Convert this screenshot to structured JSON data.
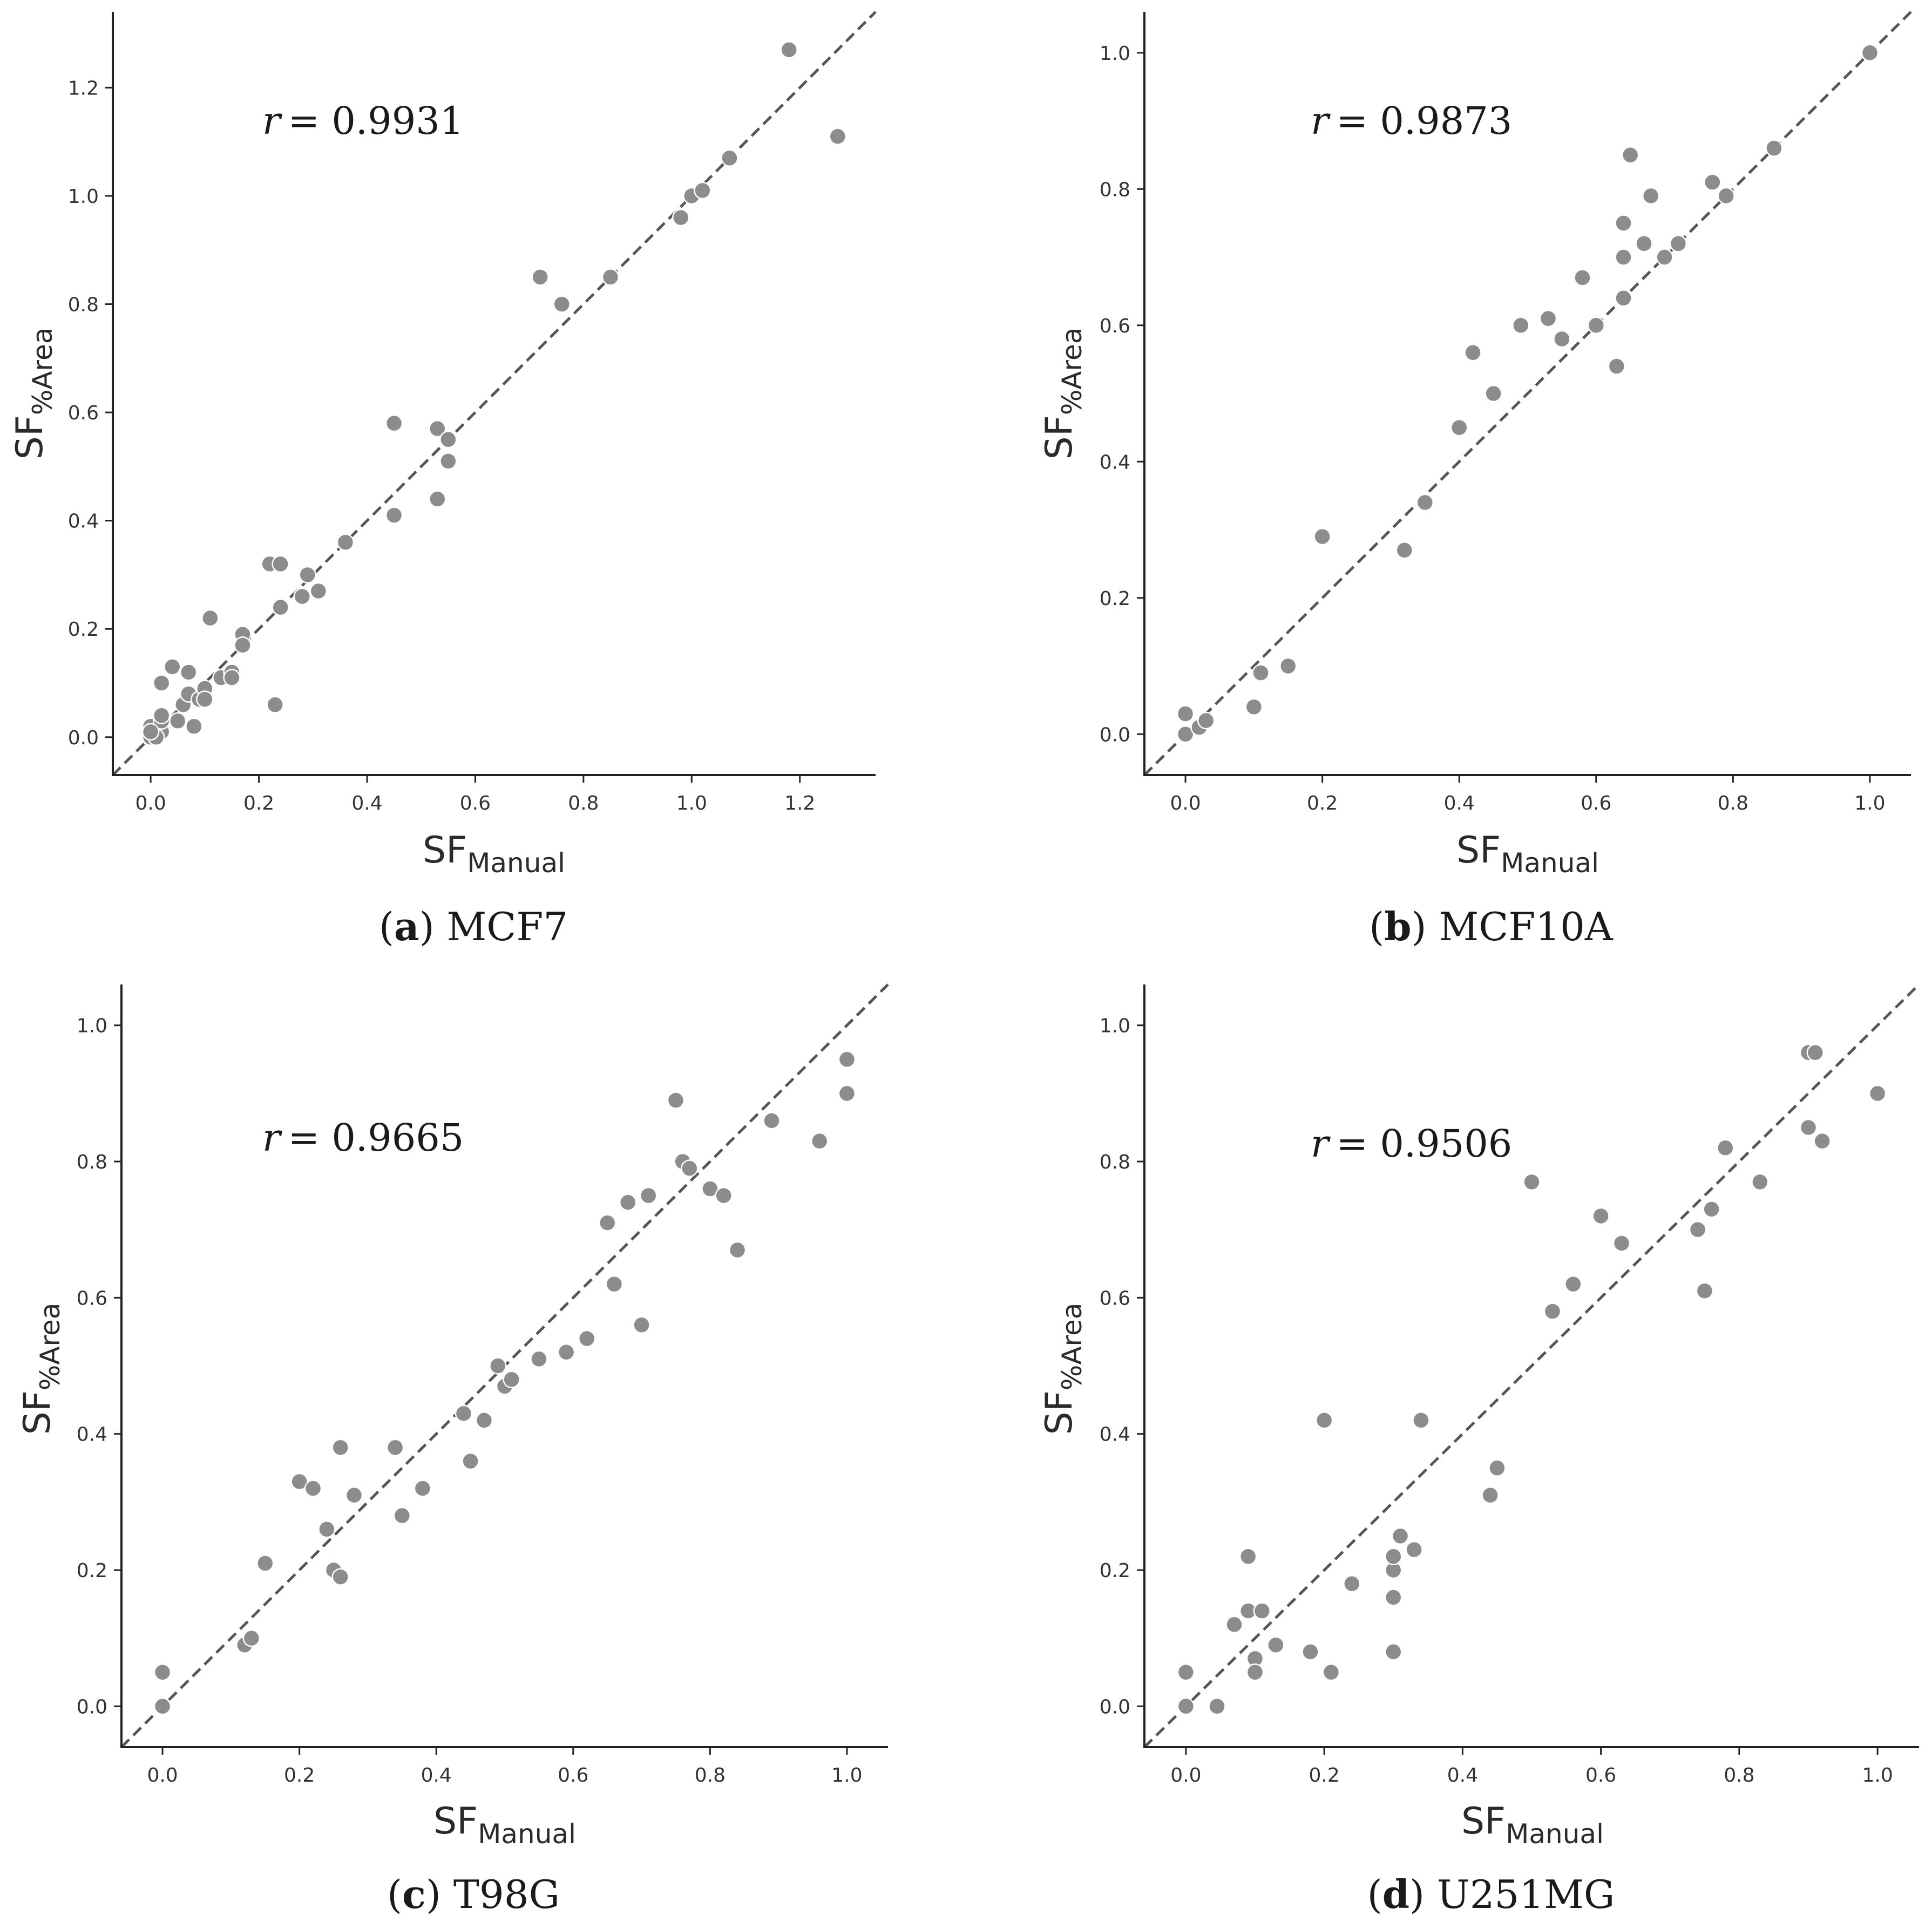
{
  "chart_data": [
    {
      "type": "scatter",
      "panel_letter": "a",
      "caption": "MCF7",
      "r_label": "r",
      "r_value": "= 0.9931",
      "xlabel": "SF",
      "xlabel_sub": "Manual",
      "ylabel": "SF",
      "ylabel_sub": "%Area",
      "xlim": [
        -0.07,
        1.34
      ],
      "ylim": [
        -0.07,
        1.34
      ],
      "xticks": [
        "0.0",
        "0.2",
        "0.4",
        "0.6",
        "0.8",
        "1.0",
        "1.2"
      ],
      "yticks": [
        "0.0",
        "0.2",
        "0.4",
        "0.6",
        "0.8",
        "1.0",
        "1.2"
      ],
      "reference_line": "y = x",
      "points": [
        [
          0.0,
          0.0
        ],
        [
          0.005,
          0.01
        ],
        [
          0.01,
          0.02
        ],
        [
          0.015,
          0.005
        ],
        [
          0.02,
          0.01
        ],
        [
          0.0,
          0.02
        ],
        [
          0.01,
          0.0
        ],
        [
          0.02,
          0.03
        ],
        [
          0.0,
          0.01
        ],
        [
          0.02,
          0.1
        ],
        [
          0.02,
          0.04
        ],
        [
          0.04,
          0.13
        ],
        [
          0.05,
          0.03
        ],
        [
          0.06,
          0.06
        ],
        [
          0.07,
          0.12
        ],
        [
          0.07,
          0.08
        ],
        [
          0.08,
          0.02
        ],
        [
          0.09,
          0.07
        ],
        [
          0.1,
          0.09
        ],
        [
          0.1,
          0.07
        ],
        [
          0.11,
          0.22
        ],
        [
          0.13,
          0.11
        ],
        [
          0.15,
          0.12
        ],
        [
          0.15,
          0.11
        ],
        [
          0.17,
          0.19
        ],
        [
          0.17,
          0.17
        ],
        [
          0.22,
          0.32
        ],
        [
          0.23,
          0.06
        ],
        [
          0.24,
          0.32
        ],
        [
          0.24,
          0.24
        ],
        [
          0.28,
          0.26
        ],
        [
          0.29,
          0.3
        ],
        [
          0.31,
          0.27
        ],
        [
          0.36,
          0.36
        ],
        [
          0.45,
          0.58
        ],
        [
          0.45,
          0.41
        ],
        [
          0.53,
          0.57
        ],
        [
          0.53,
          0.44
        ],
        [
          0.55,
          0.55
        ],
        [
          0.55,
          0.51
        ],
        [
          0.72,
          0.85
        ],
        [
          0.76,
          0.8
        ],
        [
          0.85,
          0.85
        ],
        [
          0.98,
          0.96
        ],
        [
          1.0,
          1.0
        ],
        [
          1.02,
          1.01
        ],
        [
          1.07,
          1.07
        ],
        [
          1.18,
          1.27
        ],
        [
          1.27,
          1.11
        ]
      ]
    },
    {
      "type": "scatter",
      "panel_letter": "b",
      "caption": "MCF10A",
      "r_label": "r",
      "r_value": "= 0.9873",
      "xlabel": "SF",
      "xlabel_sub": "Manual",
      "ylabel": "SF",
      "ylabel_sub": "%Area",
      "xlim": [
        -0.06,
        1.06
      ],
      "ylim": [
        -0.06,
        1.06
      ],
      "xticks": [
        "0.0",
        "0.2",
        "0.4",
        "0.6",
        "0.8",
        "1.0"
      ],
      "yticks": [
        "0.0",
        "0.2",
        "0.4",
        "0.6",
        "0.8",
        "1.0"
      ],
      "reference_line": "y = x",
      "points": [
        [
          0.0,
          0.0
        ],
        [
          0.0,
          0.03
        ],
        [
          0.02,
          0.01
        ],
        [
          0.03,
          0.02
        ],
        [
          0.1,
          0.04
        ],
        [
          0.11,
          0.09
        ],
        [
          0.15,
          0.1
        ],
        [
          0.2,
          0.29
        ],
        [
          0.32,
          0.27
        ],
        [
          0.35,
          0.34
        ],
        [
          0.4,
          0.45
        ],
        [
          0.42,
          0.56
        ],
        [
          0.45,
          0.5
        ],
        [
          0.49,
          0.6
        ],
        [
          0.53,
          0.61
        ],
        [
          0.55,
          0.58
        ],
        [
          0.58,
          0.67
        ],
        [
          0.6,
          0.6
        ],
        [
          0.63,
          0.54
        ],
        [
          0.64,
          0.75
        ],
        [
          0.64,
          0.7
        ],
        [
          0.64,
          0.64
        ],
        [
          0.65,
          0.85
        ],
        [
          0.67,
          0.72
        ],
        [
          0.68,
          0.79
        ],
        [
          0.7,
          0.7
        ],
        [
          0.72,
          0.72
        ],
        [
          0.77,
          0.81
        ],
        [
          0.79,
          0.79
        ],
        [
          0.86,
          0.86
        ],
        [
          1.0,
          1.0
        ]
      ]
    },
    {
      "type": "scatter",
      "panel_letter": "c",
      "caption": "T98G",
      "r_label": "r",
      "r_value": "= 0.9665",
      "xlabel": "SF",
      "xlabel_sub": "Manual",
      "ylabel": "SF",
      "ylabel_sub": "%Area",
      "xlim": [
        -0.06,
        1.06
      ],
      "ylim": [
        -0.06,
        1.06
      ],
      "xticks": [
        "0.0",
        "0.2",
        "0.4",
        "0.6",
        "0.8",
        "1.0"
      ],
      "yticks": [
        "0.0",
        "0.2",
        "0.4",
        "0.6",
        "0.8",
        "1.0"
      ],
      "reference_line": "y = x",
      "points": [
        [
          0.0,
          0.0
        ],
        [
          0.0,
          0.05
        ],
        [
          0.12,
          0.09
        ],
        [
          0.13,
          0.1
        ],
        [
          0.15,
          0.21
        ],
        [
          0.2,
          0.33
        ],
        [
          0.22,
          0.32
        ],
        [
          0.24,
          0.26
        ],
        [
          0.25,
          0.2
        ],
        [
          0.26,
          0.38
        ],
        [
          0.26,
          0.19
        ],
        [
          0.28,
          0.31
        ],
        [
          0.34,
          0.38
        ],
        [
          0.35,
          0.28
        ],
        [
          0.38,
          0.32
        ],
        [
          0.44,
          0.43
        ],
        [
          0.45,
          0.36
        ],
        [
          0.47,
          0.42
        ],
        [
          0.49,
          0.5
        ],
        [
          0.5,
          0.47
        ],
        [
          0.51,
          0.48
        ],
        [
          0.55,
          0.51
        ],
        [
          0.59,
          0.52
        ],
        [
          0.62,
          0.54
        ],
        [
          0.65,
          0.71
        ],
        [
          0.66,
          0.62
        ],
        [
          0.68,
          0.74
        ],
        [
          0.7,
          0.56
        ],
        [
          0.71,
          0.75
        ],
        [
          0.75,
          0.89
        ],
        [
          0.76,
          0.8
        ],
        [
          0.77,
          0.79
        ],
        [
          0.8,
          0.76
        ],
        [
          0.82,
          0.75
        ],
        [
          0.84,
          0.67
        ],
        [
          0.89,
          0.86
        ],
        [
          0.96,
          0.83
        ],
        [
          1.0,
          0.95
        ],
        [
          1.0,
          0.9
        ]
      ]
    },
    {
      "type": "scatter",
      "panel_letter": "d",
      "caption": "U251MG",
      "r_label": "r",
      "r_value": "= 0.9506",
      "xlabel": "SF",
      "xlabel_sub": "Manual",
      "ylabel": "SF",
      "ylabel_sub": "%Area",
      "xlim": [
        -0.06,
        1.06
      ],
      "ylim": [
        -0.06,
        1.06
      ],
      "xticks": [
        "0.0",
        "0.2",
        "0.4",
        "0.6",
        "0.8",
        "1.0"
      ],
      "yticks": [
        "0.0",
        "0.2",
        "0.4",
        "0.6",
        "0.8",
        "1.0"
      ],
      "reference_line": "y = x",
      "points": [
        [
          0.0,
          0.0
        ],
        [
          0.0,
          0.05
        ],
        [
          0.045,
          0.0
        ],
        [
          0.07,
          0.12
        ],
        [
          0.09,
          0.22
        ],
        [
          0.09,
          0.14
        ],
        [
          0.1,
          0.07
        ],
        [
          0.1,
          0.05
        ],
        [
          0.11,
          0.14
        ],
        [
          0.13,
          0.09
        ],
        [
          0.18,
          0.08
        ],
        [
          0.2,
          0.42
        ],
        [
          0.21,
          0.05
        ],
        [
          0.24,
          0.18
        ],
        [
          0.3,
          0.2
        ],
        [
          0.3,
          0.22
        ],
        [
          0.3,
          0.16
        ],
        [
          0.3,
          0.08
        ],
        [
          0.31,
          0.25
        ],
        [
          0.33,
          0.23
        ],
        [
          0.34,
          0.42
        ],
        [
          0.44,
          0.31
        ],
        [
          0.45,
          0.35
        ],
        [
          0.5,
          0.77
        ],
        [
          0.53,
          0.58
        ],
        [
          0.56,
          0.62
        ],
        [
          0.6,
          0.72
        ],
        [
          0.63,
          0.68
        ],
        [
          0.74,
          0.7
        ],
        [
          0.75,
          0.61
        ],
        [
          0.76,
          0.73
        ],
        [
          0.78,
          0.82
        ],
        [
          0.83,
          0.77
        ],
        [
          0.9,
          0.96
        ],
        [
          0.9,
          0.85
        ],
        [
          0.91,
          0.96
        ],
        [
          0.92,
          0.83
        ],
        [
          1.0,
          0.9
        ]
      ]
    }
  ]
}
